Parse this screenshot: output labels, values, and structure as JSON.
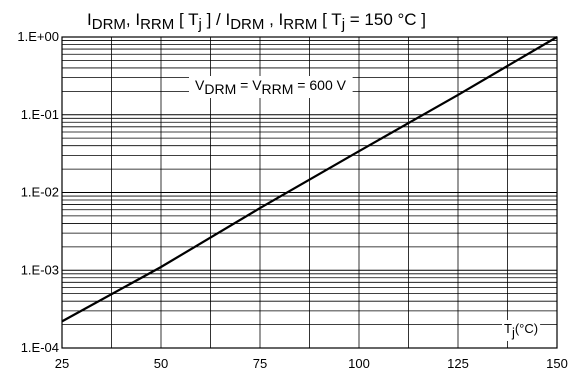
{
  "chart_data": {
    "type": "line",
    "title": {
      "parts": [
        {
          "t": "I",
          "sub": false
        },
        {
          "t": "DRM",
          "sub": true
        },
        {
          "t": ", I",
          "sub": false
        },
        {
          "t": "RRM",
          "sub": true
        },
        {
          "t": " [ T",
          "sub": false
        },
        {
          "t": "j",
          "sub": true
        },
        {
          "t": " ] / I",
          "sub": false
        },
        {
          "t": "DRM",
          "sub": true
        },
        {
          "t": " , I",
          "sub": false
        },
        {
          "t": "RRM",
          "sub": true
        },
        {
          "t": " [ T",
          "sub": false
        },
        {
          "t": "j",
          "sub": true
        },
        {
          "t": " = 150 °C ]",
          "sub": false
        }
      ]
    },
    "annotation": {
      "parts": [
        {
          "t": "V",
          "sub": false
        },
        {
          "t": "DRM",
          "sub": true
        },
        {
          "t": " = V",
          "sub": false
        },
        {
          "t": "RRM",
          "sub": true
        },
        {
          "t": " = 600 V",
          "sub": false
        }
      ]
    },
    "xlabel": {
      "parts": [
        {
          "t": "T",
          "sub": false
        },
        {
          "t": "j",
          "sub": true
        },
        {
          "t": "(°C)",
          "sub": false
        }
      ]
    },
    "x_ticks": [
      25,
      50,
      75,
      100,
      125,
      150
    ],
    "x_tick_labels": [
      "25",
      "50",
      "75",
      "100",
      "125",
      "150"
    ],
    "y_ticks": [
      0.0001,
      0.001,
      0.01,
      0.1,
      1
    ],
    "y_tick_labels": [
      "1.E-04",
      "1.E-03",
      "1.E-02",
      "1.E-01",
      "1.E+00"
    ],
    "xlim": [
      25,
      150
    ],
    "ylim": [
      0.0001,
      1
    ],
    "yscale": "log",
    "grid": true,
    "series": [
      {
        "x": [
          25,
          50,
          75,
          100,
          125,
          150
        ],
        "y": [
          0.00022,
          0.0011,
          0.0063,
          0.034,
          0.18,
          1.0
        ]
      }
    ],
    "colors": {
      "line": "#000000",
      "grid": "#000000",
      "background": "#ffffff"
    }
  }
}
